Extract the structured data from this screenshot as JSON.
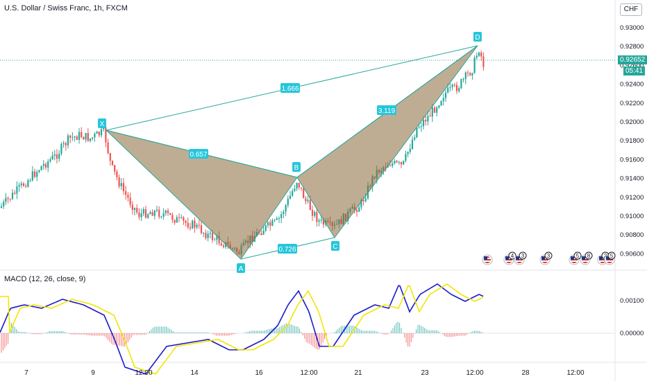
{
  "header": {
    "symbol_info": "U.S. Dollar / Swiss Franc, 1h, FXCM",
    "currency": "CHF"
  },
  "price_axis": {
    "ticks": [
      "0.93000",
      "0.92800",
      "0.92600",
      "0.92400",
      "0.92200",
      "0.92000",
      "0.91800",
      "0.91600",
      "0.91400",
      "0.91200",
      "0.91000",
      "0.90800",
      "0.90600"
    ],
    "last_price": "0.92652",
    "countdown": "05:41"
  },
  "time_axis": {
    "ticks": [
      "7",
      "9",
      "12:00",
      "14",
      "16",
      "12:00",
      "21",
      "23",
      "12:00",
      "28",
      "12:00"
    ]
  },
  "pattern": {
    "points": {
      "X": "X",
      "A": "A",
      "B": "B",
      "C": "C",
      "D": "D"
    },
    "ratios": {
      "xb": "0.657",
      "ac": "0.726",
      "bd": "3.119",
      "xd": "1.666"
    },
    "fill_color": "#8b6a3a",
    "line_color": "#26a69a"
  },
  "macd": {
    "label": "MACD (12, 26, close, 9)",
    "ticks": [
      "0.00100",
      "0.00000"
    ],
    "macd_color": "#1a1acc",
    "signal_color": "#f2e600"
  },
  "events": {
    "badges": [
      "4",
      "3",
      "3",
      "5",
      "8",
      "2",
      "5"
    ]
  },
  "colors": {
    "up": "#26a69a",
    "down": "#ef5350",
    "accent": "#26c6da"
  }
}
